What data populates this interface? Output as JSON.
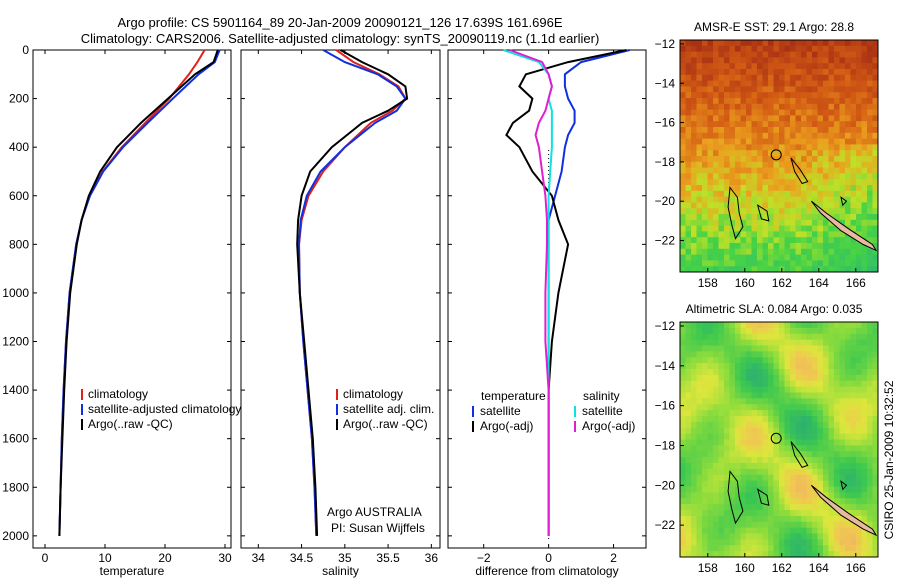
{
  "header": {
    "line1": "Argo profile: CS 5901164_89 20-Jan-2009 20090121_126 17.639S 161.696E",
    "line2": "Climatology: CARS2006. Satellite-adjusted climatology: synTS_20090119.nc (1.1d earlier)"
  },
  "credit": "CSIRO 25-Jan-2009 10:32:52",
  "colors": {
    "climatology": "#e0201c",
    "satellite": "#1030e0",
    "argo": "#000000",
    "satellite_salt": "#10e0e0",
    "argo_salt": "#e020d0"
  },
  "chart_data": [
    {
      "type": "line",
      "name": "temperature",
      "xlabel": "temperature",
      "ylabel": "depth",
      "xlim": [
        -2,
        31
      ],
      "ylim": [
        2050,
        0
      ],
      "xticks": [
        0,
        10,
        20,
        30
      ],
      "yticks": [
        0,
        200,
        400,
        600,
        800,
        1000,
        1200,
        1400,
        1600,
        1800,
        2000
      ],
      "legend": [
        "climatology",
        "satellite-adjusted climatology",
        "Argo(..raw -QC)"
      ],
      "depth": [
        0,
        50,
        100,
        200,
        300,
        400,
        500,
        600,
        700,
        800,
        1000,
        1200,
        1400,
        1600,
        1800,
        2000
      ],
      "series": [
        {
          "name": "climatology",
          "color_key": "climatology",
          "values": [
            26.6,
            25.4,
            24.0,
            20.7,
            16.7,
            12.8,
            9.6,
            7.4,
            6.1,
            5.2,
            4.1,
            3.5,
            3.1,
            2.8,
            2.6,
            2.4
          ]
        },
        {
          "name": "satellite-adjusted climatology",
          "color_key": "satellite",
          "values": [
            29.1,
            28.3,
            25.6,
            21.3,
            17.1,
            13.0,
            9.7,
            7.5,
            6.1,
            5.2,
            4.1,
            3.5,
            3.1,
            2.8,
            2.6,
            2.4
          ]
        },
        {
          "name": "Argo(..raw -QC)",
          "color_key": "argo",
          "values": [
            28.8,
            28.1,
            25.0,
            20.5,
            16.0,
            12.0,
            9.2,
            7.3,
            6.1,
            5.3,
            4.2,
            3.6,
            3.2,
            2.9,
            2.6,
            2.4
          ]
        }
      ]
    },
    {
      "type": "line",
      "name": "salinity",
      "xlabel": "salinity",
      "xlim": [
        33.8,
        36.1
      ],
      "ylim": [
        2050,
        0
      ],
      "xticks": [
        34,
        34.5,
        35,
        35.5,
        36
      ],
      "legend": [
        "climatology",
        "satellite adj. clim.",
        "Argo(..raw -QC)"
      ],
      "annotation": [
        "Argo AUSTRALIA",
        "PI: Susan Wijffels"
      ],
      "depth": [
        0,
        50,
        100,
        150,
        200,
        250,
        300,
        400,
        500,
        600,
        700,
        800,
        1000,
        1200,
        1400,
        1600,
        1800,
        2000
      ],
      "series": [
        {
          "name": "climatology",
          "color_key": "climatology",
          "values": [
            34.9,
            35.1,
            35.4,
            35.62,
            35.7,
            35.55,
            35.3,
            35.0,
            34.75,
            34.58,
            34.5,
            34.47,
            34.48,
            34.52,
            34.57,
            34.62,
            34.65,
            34.67
          ]
        },
        {
          "name": "satellite adj. clim.",
          "color_key": "satellite",
          "values": [
            34.75,
            35.0,
            35.38,
            35.6,
            35.7,
            35.6,
            35.35,
            35.0,
            34.72,
            34.56,
            34.49,
            34.47,
            34.48,
            34.52,
            34.57,
            34.62,
            34.65,
            34.67
          ]
        },
        {
          "name": "Argo(..raw -QC)",
          "color_key": "argo",
          "values": [
            34.95,
            35.2,
            35.5,
            35.7,
            35.72,
            35.5,
            35.2,
            34.85,
            34.6,
            34.5,
            34.46,
            34.45,
            34.48,
            34.53,
            34.58,
            34.63,
            34.66,
            34.68
          ]
        }
      ]
    },
    {
      "type": "line",
      "name": "difference",
      "xlabel": "difference from climatology",
      "xlim": [
        -3.1,
        3.0
      ],
      "ylim": [
        2050,
        0
      ],
      "xticks": [
        -2,
        0,
        2
      ],
      "legend_titles": [
        "temperature",
        "salinity"
      ],
      "legend_temperature": [
        "satellite",
        "Argo(-adj)"
      ],
      "legend_salinity": [
        "satellite",
        "Argo(-adj)"
      ],
      "depth": [
        0,
        50,
        100,
        150,
        200,
        250,
        300,
        350,
        400,
        500,
        600,
        700,
        800,
        1000,
        1200,
        1400,
        1600,
        1800,
        2000
      ],
      "series": [
        {
          "name": "temperature satellite",
          "color_key": "satellite",
          "values": [
            2.5,
            1.0,
            0.5,
            0.5,
            0.6,
            0.8,
            0.8,
            0.6,
            0.5,
            0.4,
            0.2,
            0.0,
            0.0,
            0.0,
            0.0,
            0.0,
            0.0,
            0.0,
            0.0
          ]
        },
        {
          "name": "temperature Argo(-adj)",
          "color_key": "argo",
          "values": [
            2.4,
            0.6,
            -0.7,
            -0.9,
            -0.5,
            -0.6,
            -1.1,
            -1.3,
            -0.9,
            -0.5,
            0.1,
            0.3,
            0.6,
            0.3,
            0.1,
            0.0,
            0.0,
            0.0,
            0.0
          ]
        },
        {
          "name": "salinity satellite",
          "color_key": "satellite_salt",
          "values": [
            -1.4,
            -0.3,
            0.0,
            0.1,
            0.0,
            0.1,
            0.1,
            0.1,
            0.1,
            0.05,
            0.0,
            0.0,
            0.0,
            0.0,
            0.0,
            0.0,
            0.0,
            0.0,
            0.0
          ]
        },
        {
          "name": "salinity Argo(-adj)",
          "color_key": "argo_salt",
          "values": [
            -1.2,
            -0.2,
            0.0,
            0.1,
            0.0,
            -0.1,
            -0.3,
            -0.4,
            -0.3,
            -0.2,
            -0.1,
            -0.05,
            -0.05,
            -0.1,
            -0.1,
            0.0,
            0.0,
            0.0,
            0.0
          ]
        }
      ]
    },
    {
      "type": "heatmap",
      "name": "sst_map",
      "title": "AMSR-E SST: 29.1 Argo: 28.8",
      "xlim": [
        156.5,
        167.2
      ],
      "ylim": [
        -23.6,
        -11.8
      ],
      "xticks": [
        158,
        160,
        162,
        164,
        166
      ],
      "yticks": [
        -12,
        -14,
        -16,
        -18,
        -20,
        -22
      ],
      "marker": {
        "lon": 161.7,
        "lat": -17.64
      }
    },
    {
      "type": "heatmap",
      "name": "sla_map",
      "title": "Altimetric SLA: 0.084 Argo: 0.035",
      "xlim": [
        156.5,
        167.2
      ],
      "ylim": [
        -23.6,
        -11.8
      ],
      "xticks": [
        158,
        160,
        162,
        164,
        166
      ],
      "yticks": [
        -12,
        -14,
        -16,
        -18,
        -20,
        -22
      ],
      "marker": {
        "lon": 161.7,
        "lat": -17.64
      }
    }
  ]
}
